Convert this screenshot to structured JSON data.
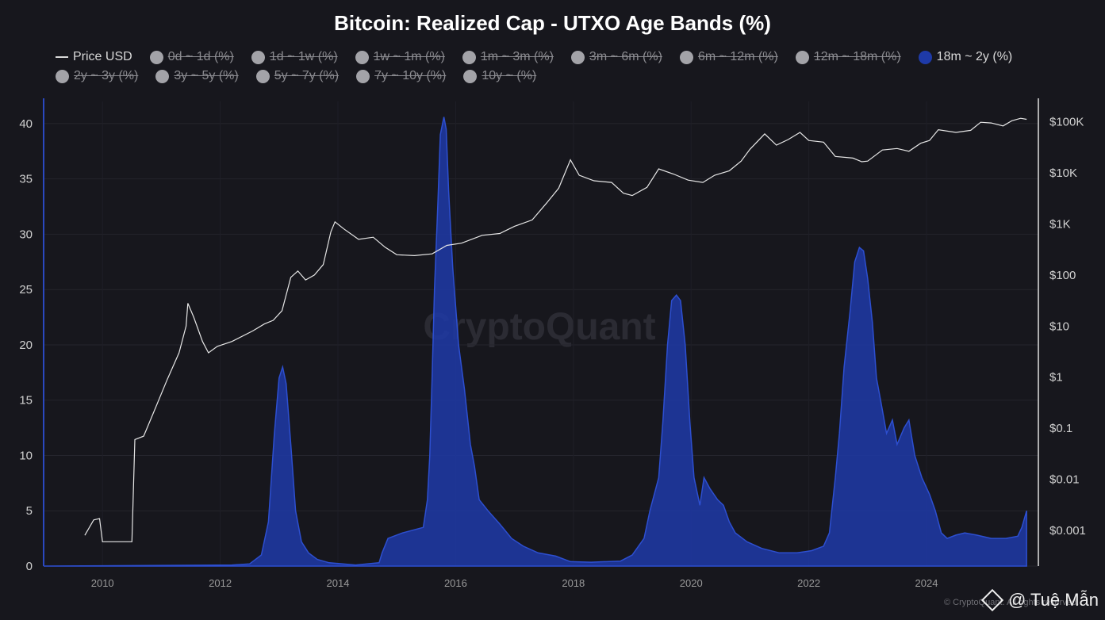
{
  "title": "Bitcoin: Realized Cap - UTXO Age Bands (%)",
  "legend": [
    {
      "label": "Price USD",
      "kind": "line",
      "enabled": true
    },
    {
      "label": "0d ~ 1d (%)",
      "kind": "dot",
      "enabled": false
    },
    {
      "label": "1d ~ 1w (%)",
      "kind": "dot",
      "enabled": false
    },
    {
      "label": "1w ~ 1m (%)",
      "kind": "dot",
      "enabled": false
    },
    {
      "label": "1m ~ 3m (%)",
      "kind": "dot",
      "enabled": false
    },
    {
      "label": "3m ~ 6m (%)",
      "kind": "dot",
      "enabled": false
    },
    {
      "label": "6m ~ 12m (%)",
      "kind": "dot",
      "enabled": false
    },
    {
      "label": "12m ~ 18m (%)",
      "kind": "dot",
      "enabled": false
    },
    {
      "label": "18m ~ 2y (%)",
      "kind": "dot",
      "enabled": true,
      "color": "#1e3aa8"
    },
    {
      "label": "2y ~ 3y (%)",
      "kind": "dot",
      "enabled": false
    },
    {
      "label": "3y ~ 5y (%)",
      "kind": "dot",
      "enabled": false
    },
    {
      "label": "5y ~ 7y (%)",
      "kind": "dot",
      "enabled": false
    },
    {
      "label": "7y ~ 10y (%)",
      "kind": "dot",
      "enabled": false
    },
    {
      "label": "10y ~ (%)",
      "kind": "dot",
      "enabled": false
    }
  ],
  "watermark": "CryptoQuant",
  "credit": "@ Tuệ Mẫn",
  "credit_small": "© CryptoQuant. All rights reserved.",
  "chart_data": {
    "type": "area",
    "title": "Bitcoin: Realized Cap - UTXO Age Bands (%)",
    "x_range": [
      2009,
      2025.9
    ],
    "x_ticks": [
      2010,
      2012,
      2014,
      2016,
      2018,
      2020,
      2022,
      2024
    ],
    "y_left": {
      "range": [
        0,
        42
      ],
      "ticks": [
        0,
        5,
        10,
        15,
        20,
        25,
        30,
        35,
        40
      ]
    },
    "y_right": {
      "scale": "log",
      "range": [
        0.0002,
        250000
      ],
      "ticks": [
        {
          "value": 0.001,
          "label": "$0.001"
        },
        {
          "value": 0.01,
          "label": "$0.01"
        },
        {
          "value": 0.1,
          "label": "$0.1"
        },
        {
          "value": 1,
          "label": "$1"
        },
        {
          "value": 10,
          "label": "$10"
        },
        {
          "value": 100,
          "label": "$100"
        },
        {
          "value": 1000,
          "label": "$1K"
        },
        {
          "value": 10000,
          "label": "$10K"
        },
        {
          "value": 100000,
          "label": "$100K"
        }
      ]
    },
    "grid": true,
    "series": [
      {
        "name": "18m ~ 2y (%)",
        "axis": "left",
        "color": "#1e3aa8",
        "points": [
          [
            2009.0,
            0
          ],
          [
            2012.2,
            0.1
          ],
          [
            2012.5,
            0.2
          ],
          [
            2012.7,
            1.0
          ],
          [
            2012.82,
            4
          ],
          [
            2012.92,
            12
          ],
          [
            2013.0,
            17
          ],
          [
            2013.06,
            18
          ],
          [
            2013.12,
            16.5
          ],
          [
            2013.2,
            11
          ],
          [
            2013.28,
            5
          ],
          [
            2013.38,
            2.2
          ],
          [
            2013.5,
            1.2
          ],
          [
            2013.65,
            0.6
          ],
          [
            2013.85,
            0.3
          ],
          [
            2014.3,
            0.1
          ],
          [
            2014.7,
            0.3
          ],
          [
            2014.75,
            1.2
          ],
          [
            2014.85,
            2.5
          ],
          [
            2015.1,
            3
          ],
          [
            2015.45,
            3.5
          ],
          [
            2015.52,
            6
          ],
          [
            2015.56,
            10
          ],
          [
            2015.6,
            17
          ],
          [
            2015.64,
            25
          ],
          [
            2015.7,
            33
          ],
          [
            2015.74,
            39
          ],
          [
            2015.8,
            40.6
          ],
          [
            2015.84,
            39.5
          ],
          [
            2015.88,
            34
          ],
          [
            2015.95,
            27
          ],
          [
            2016.05,
            20
          ],
          [
            2016.15,
            16
          ],
          [
            2016.25,
            11
          ],
          [
            2016.32,
            9
          ],
          [
            2016.4,
            6
          ],
          [
            2016.55,
            5
          ],
          [
            2016.75,
            3.8
          ],
          [
            2016.95,
            2.5
          ],
          [
            2017.15,
            1.8
          ],
          [
            2017.4,
            1.2
          ],
          [
            2017.7,
            0.9
          ],
          [
            2017.95,
            0.4
          ],
          [
            2018.3,
            0.35
          ],
          [
            2018.8,
            0.45
          ],
          [
            2019.0,
            1.0
          ],
          [
            2019.2,
            2.5
          ],
          [
            2019.3,
            5
          ],
          [
            2019.45,
            8
          ],
          [
            2019.52,
            13
          ],
          [
            2019.6,
            20
          ],
          [
            2019.67,
            24
          ],
          [
            2019.75,
            24.5
          ],
          [
            2019.82,
            24
          ],
          [
            2019.9,
            20
          ],
          [
            2019.98,
            13
          ],
          [
            2020.05,
            8
          ],
          [
            2020.15,
            5.5
          ],
          [
            2020.22,
            8
          ],
          [
            2020.32,
            7
          ],
          [
            2020.45,
            6
          ],
          [
            2020.55,
            5.5
          ],
          [
            2020.65,
            4
          ],
          [
            2020.75,
            3
          ],
          [
            2020.95,
            2.2
          ],
          [
            2021.2,
            1.6
          ],
          [
            2021.5,
            1.2
          ],
          [
            2021.8,
            1.2
          ],
          [
            2022.05,
            1.4
          ],
          [
            2022.25,
            1.8
          ],
          [
            2022.35,
            3
          ],
          [
            2022.45,
            8
          ],
          [
            2022.52,
            12
          ],
          [
            2022.6,
            18
          ],
          [
            2022.7,
            23
          ],
          [
            2022.78,
            27.5
          ],
          [
            2022.86,
            28.8
          ],
          [
            2022.93,
            28.5
          ],
          [
            2023.0,
            26
          ],
          [
            2023.08,
            22
          ],
          [
            2023.15,
            17
          ],
          [
            2023.22,
            15
          ],
          [
            2023.32,
            12
          ],
          [
            2023.42,
            13.2
          ],
          [
            2023.5,
            11
          ],
          [
            2023.62,
            12.5
          ],
          [
            2023.7,
            13.2
          ],
          [
            2023.8,
            10
          ],
          [
            2023.92,
            8
          ],
          [
            2024.05,
            6.5
          ],
          [
            2024.15,
            5
          ],
          [
            2024.25,
            3
          ],
          [
            2024.35,
            2.5
          ],
          [
            2024.5,
            2.8
          ],
          [
            2024.65,
            3
          ],
          [
            2024.85,
            2.8
          ],
          [
            2025.1,
            2.5
          ],
          [
            2025.35,
            2.5
          ],
          [
            2025.55,
            2.7
          ],
          [
            2025.62,
            3.5
          ],
          [
            2025.7,
            5
          ]
        ]
      },
      {
        "name": "Price USD",
        "axis": "right",
        "color": "#e6e6e6",
        "points": [
          [
            2009.7,
            0.0008
          ],
          [
            2009.85,
            0.0016
          ],
          [
            2009.95,
            0.0017
          ],
          [
            2010.0,
            0.0006
          ],
          [
            2010.5,
            0.0006
          ],
          [
            2010.55,
            0.06
          ],
          [
            2010.7,
            0.07
          ],
          [
            2010.9,
            0.25
          ],
          [
            2011.1,
            0.9
          ],
          [
            2011.3,
            3
          ],
          [
            2011.42,
            10
          ],
          [
            2011.45,
            28
          ],
          [
            2011.55,
            15
          ],
          [
            2011.7,
            5
          ],
          [
            2011.8,
            3
          ],
          [
            2011.95,
            4
          ],
          [
            2012.2,
            5
          ],
          [
            2012.55,
            8
          ],
          [
            2012.75,
            11
          ],
          [
            2012.9,
            13
          ],
          [
            2013.05,
            20
          ],
          [
            2013.2,
            90
          ],
          [
            2013.32,
            120
          ],
          [
            2013.45,
            80
          ],
          [
            2013.6,
            100
          ],
          [
            2013.75,
            160
          ],
          [
            2013.88,
            700
          ],
          [
            2013.95,
            1100
          ],
          [
            2014.1,
            800
          ],
          [
            2014.35,
            500
          ],
          [
            2014.6,
            550
          ],
          [
            2014.8,
            350
          ],
          [
            2015.0,
            250
          ],
          [
            2015.3,
            240
          ],
          [
            2015.6,
            260
          ],
          [
            2015.85,
            380
          ],
          [
            2016.1,
            420
          ],
          [
            2016.45,
            600
          ],
          [
            2016.75,
            650
          ],
          [
            2017.0,
            900
          ],
          [
            2017.3,
            1200
          ],
          [
            2017.55,
            2600
          ],
          [
            2017.75,
            5000
          ],
          [
            2017.95,
            18000
          ],
          [
            2018.1,
            9000
          ],
          [
            2018.35,
            7000
          ],
          [
            2018.65,
            6500
          ],
          [
            2018.85,
            4000
          ],
          [
            2019.0,
            3600
          ],
          [
            2019.25,
            5200
          ],
          [
            2019.45,
            12000
          ],
          [
            2019.7,
            9500
          ],
          [
            2019.95,
            7200
          ],
          [
            2020.2,
            6500
          ],
          [
            2020.4,
            9000
          ],
          [
            2020.65,
            11000
          ],
          [
            2020.85,
            17000
          ],
          [
            2021.0,
            29000
          ],
          [
            2021.25,
            58000
          ],
          [
            2021.45,
            35000
          ],
          [
            2021.65,
            45000
          ],
          [
            2021.85,
            62000
          ],
          [
            2022.0,
            43000
          ],
          [
            2022.25,
            40000
          ],
          [
            2022.45,
            21000
          ],
          [
            2022.75,
            19500
          ],
          [
            2022.9,
            16500
          ],
          [
            2023.0,
            17000
          ],
          [
            2023.25,
            28000
          ],
          [
            2023.5,
            30000
          ],
          [
            2023.7,
            26500
          ],
          [
            2023.9,
            38000
          ],
          [
            2024.05,
            43000
          ],
          [
            2024.2,
            70000
          ],
          [
            2024.5,
            62000
          ],
          [
            2024.75,
            68000
          ],
          [
            2024.92,
            98000
          ],
          [
            2025.1,
            95000
          ],
          [
            2025.3,
            83000
          ],
          [
            2025.45,
            105000
          ],
          [
            2025.6,
            117000
          ],
          [
            2025.7,
            112000
          ]
        ]
      }
    ]
  }
}
